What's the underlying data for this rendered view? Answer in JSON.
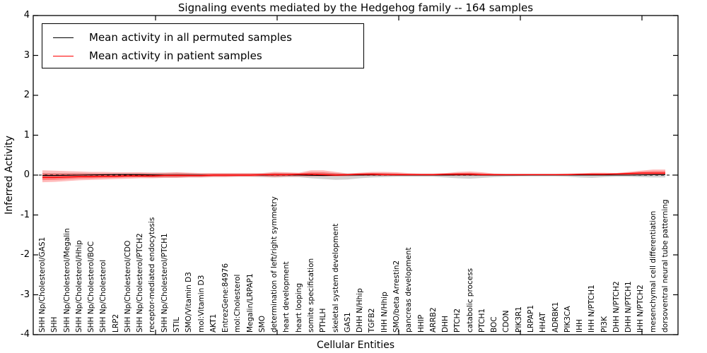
{
  "figure": {
    "title": "Signaling events mediated by the Hedgehog family -- 164 samples"
  },
  "axes": {
    "ylabel": "Inferred Activity",
    "xlabel": "Cellular Entities",
    "ytick_labels": [
      "4",
      "3",
      "2",
      "1",
      "0",
      "-1",
      "-2",
      "-3",
      "-4"
    ]
  },
  "legend": {
    "entries": [
      {
        "label": "Mean activity in all permuted samples",
        "color": "#000000"
      },
      {
        "label": "Mean activity in patient samples",
        "color": "#ff0000"
      }
    ]
  },
  "chart_data": {
    "type": "line",
    "title": "Signaling events mediated by the Hedgehog family -- 164 samples",
    "xlabel": "Cellular Entities",
    "ylabel": "Inferred Activity",
    "ylim": [
      -4,
      4
    ],
    "yticks": [
      4,
      3,
      2,
      1,
      0,
      -1,
      -2,
      -3,
      -4
    ],
    "grid": false,
    "legend_position": "upper left",
    "zero_line": {
      "style": "dashed",
      "color": "#000000",
      "y": 0
    },
    "categories": [
      "SHH Np/Cholesterol/GAS1",
      "SHH",
      "SHH Np/Cholesterol/Megalin",
      "SHH Np/Cholesterol/Hhip",
      "SHH Np/Cholesterol/BOC",
      "SHH Np/Cholesterol",
      "LRP2",
      "SHH Np/Cholesterol/CDO",
      "SHH Np/Cholesterol/PTCH2",
      "receptor-mediated endocytosis",
      "SHH Np/Cholesterol/PTCH1",
      "STIL",
      "SMO/Vitamin D3",
      "mol:Vitamin D3",
      "AKT1",
      "EntrezGene:84976",
      "mol:Cholesterol",
      "Megalin/LRPAP1",
      "SMO",
      "determination of left/right symmetry",
      "heart development",
      "heart looping",
      "somite specification",
      "PTHLH",
      "skeletal system development",
      "GAS1",
      "DHH N/Hhip",
      "TGFB2",
      "IHH N/Hhip",
      "SMO/beta Arrestin2",
      "pancreas development",
      "HHIP",
      "ARRB2",
      "DHH",
      "PTCH2",
      "catabolic process",
      "PTCH1",
      "BOC",
      "CDON",
      "PIK3R1",
      "LRPAP1",
      "HHAT",
      "ADRBK1",
      "PIK3CA",
      "IHH",
      "IHH N/PTCH1",
      "PI3K",
      "DHH N/PTCH2",
      "DHH N/PTCH1",
      "IHH N/PTCH2",
      "mesenchymal cell differentiation",
      "dorsoventral neural tube patterning"
    ],
    "series": [
      {
        "name": "Mean activity in all permuted samples",
        "color": "#000000",
        "values": [
          -0.01,
          -0.01,
          -0.005,
          0,
          0.005,
          0.01,
          0.015,
          0.015,
          0.01,
          0.005,
          0,
          0,
          0,
          0,
          0,
          0,
          0,
          0,
          0,
          0.005,
          0.005,
          0,
          -0.005,
          -0.01,
          -0.005,
          0,
          0,
          0.005,
          0.005,
          0,
          0,
          0,
          0,
          0,
          0.005,
          0.005,
          0,
          0,
          0,
          0,
          0,
          0,
          0,
          0,
          0,
          0,
          0,
          0,
          0,
          0.005,
          0.01,
          0.01
        ]
      },
      {
        "name": "Mean activity in patient samples",
        "color": "#ff0000",
        "values": [
          -0.06,
          -0.06,
          -0.05,
          -0.04,
          -0.04,
          -0.03,
          -0.03,
          -0.02,
          -0.02,
          -0.02,
          -0.01,
          -0.01,
          -0.01,
          -0.01,
          0,
          0,
          0,
          0,
          0.01,
          0.01,
          0.01,
          0.02,
          0.02,
          0.01,
          0,
          0.01,
          0.02,
          0.02,
          0.01,
          0.01,
          0.01,
          0.01,
          0.01,
          0.02,
          0.02,
          0.02,
          0.01,
          0.01,
          0.01,
          0.01,
          0.01,
          0.01,
          0.01,
          0.01,
          0.02,
          0.02,
          0.02,
          0.03,
          0.04,
          0.05,
          0.05,
          0.05
        ]
      }
    ],
    "bands": [
      {
        "name": "permuted std band",
        "color": "#aaaaaa",
        "hi": [
          0.05,
          0.05,
          0.05,
          0.05,
          0.05,
          0.04,
          0.04,
          0.04,
          0.05,
          0.06,
          0.06,
          0.06,
          0.05,
          0.04,
          0.04,
          0.04,
          0.04,
          0.04,
          0.04,
          0.05,
          0.05,
          0.04,
          0.05,
          0.06,
          0.05,
          0.04,
          0.04,
          0.05,
          0.05,
          0.04,
          0.03,
          0.03,
          0.03,
          0.04,
          0.05,
          0.05,
          0.04,
          0.03,
          0.03,
          0.03,
          0.03,
          0.03,
          0.03,
          0.03,
          0.04,
          0.04,
          0.04,
          0.03,
          0.04,
          0.05,
          0.05,
          0.05
        ],
        "lo": [
          -0.06,
          -0.06,
          -0.06,
          -0.05,
          -0.05,
          -0.05,
          -0.04,
          -0.04,
          -0.05,
          -0.06,
          -0.06,
          -0.06,
          -0.05,
          -0.05,
          -0.04,
          -0.04,
          -0.04,
          -0.04,
          -0.05,
          -0.06,
          -0.05,
          -0.05,
          -0.08,
          -0.1,
          -0.12,
          -0.11,
          -0.08,
          -0.06,
          -0.05,
          -0.04,
          -0.04,
          -0.04,
          -0.04,
          -0.06,
          -0.08,
          -0.09,
          -0.07,
          -0.05,
          -0.04,
          -0.03,
          -0.03,
          -0.03,
          -0.03,
          -0.04,
          -0.06,
          -0.07,
          -0.05,
          -0.04,
          -0.04,
          -0.05,
          -0.06,
          -0.06
        ]
      },
      {
        "name": "patient std band",
        "color": "#ff2222",
        "hi": [
          0.12,
          0.11,
          0.1,
          0.09,
          0.08,
          0.08,
          0.07,
          0.07,
          0.07,
          0.06,
          0.06,
          0.07,
          0.06,
          0.05,
          0.05,
          0.05,
          0.05,
          0.05,
          0.05,
          0.08,
          0.07,
          0.06,
          0.12,
          0.12,
          0.08,
          0.04,
          0.06,
          0.08,
          0.08,
          0.07,
          0.05,
          0.04,
          0.04,
          0.05,
          0.08,
          0.09,
          0.07,
          0.04,
          0.03,
          0.03,
          0.03,
          0.03,
          0.03,
          0.04,
          0.04,
          0.06,
          0.06,
          0.05,
          0.08,
          0.11,
          0.14,
          0.14
        ],
        "lo": [
          -0.18,
          -0.17,
          -0.15,
          -0.13,
          -0.12,
          -0.11,
          -0.1,
          -0.09,
          -0.08,
          -0.08,
          -0.07,
          -0.07,
          -0.06,
          -0.06,
          -0.05,
          -0.05,
          -0.04,
          -0.04,
          -0.04,
          -0.05,
          -0.04,
          -0.04,
          -0.04,
          -0.03,
          -0.03,
          -0.03,
          -0.02,
          -0.02,
          -0.02,
          -0.02,
          -0.02,
          -0.02,
          -0.02,
          -0.02,
          -0.02,
          -0.02,
          -0.02,
          -0.02,
          -0.02,
          -0.02,
          -0.01,
          -0.01,
          -0.01,
          -0.01,
          -0.01,
          -0.01,
          -0.01,
          -0.01,
          -0.01,
          0,
          0,
          0
        ]
      }
    ]
  }
}
